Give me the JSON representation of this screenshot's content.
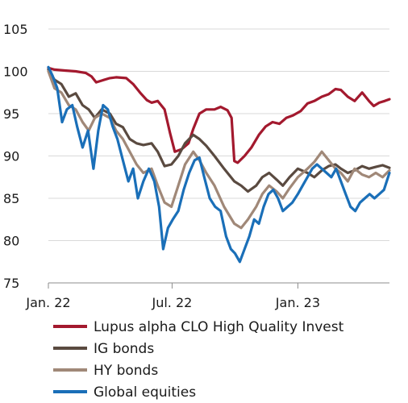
{
  "chart_data": {
    "type": "line",
    "title": "",
    "xlabel": "",
    "ylabel": "",
    "ylim": [
      75,
      105
    ],
    "yticks": [
      75,
      80,
      85,
      90,
      95,
      100,
      105
    ],
    "x_range": [
      "2022-01-01",
      "2023-05-15"
    ],
    "xticks": [
      {
        "date": "2022-01-01",
        "label": "Jan. 22"
      },
      {
        "date": "2022-07-01",
        "label": "Jul. 22"
      },
      {
        "date": "2023-01-01",
        "label": "Jan. 23"
      }
    ],
    "grid": {
      "horizontal": true,
      "vertical": false
    },
    "legend_position": "bottom",
    "series": [
      {
        "name": "Lupus alpha CLO High Quality Invest",
        "color": "#a3192e",
        "points": [
          [
            "2022-01-01",
            100.4
          ],
          [
            "2022-01-10",
            100.2
          ],
          [
            "2022-01-25",
            100.1
          ],
          [
            "2022-02-10",
            100.0
          ],
          [
            "2022-02-25",
            99.8
          ],
          [
            "2022-03-05",
            99.4
          ],
          [
            "2022-03-12",
            98.7
          ],
          [
            "2022-03-20",
            98.9
          ],
          [
            "2022-04-01",
            99.2
          ],
          [
            "2022-04-10",
            99.3
          ],
          [
            "2022-04-25",
            99.2
          ],
          [
            "2022-05-05",
            98.5
          ],
          [
            "2022-05-15",
            97.5
          ],
          [
            "2022-05-25",
            96.6
          ],
          [
            "2022-06-01",
            96.3
          ],
          [
            "2022-06-10",
            96.5
          ],
          [
            "2022-06-20",
            95.5
          ],
          [
            "2022-06-28",
            92.7
          ],
          [
            "2022-07-05",
            90.5
          ],
          [
            "2022-07-15",
            90.8
          ],
          [
            "2022-07-25",
            91.5
          ],
          [
            "2022-08-01",
            93.2
          ],
          [
            "2022-08-10",
            95.0
          ],
          [
            "2022-08-20",
            95.5
          ],
          [
            "2022-09-01",
            95.5
          ],
          [
            "2022-09-10",
            95.8
          ],
          [
            "2022-09-20",
            95.4
          ],
          [
            "2022-09-26",
            94.5
          ],
          [
            "2022-09-30",
            89.4
          ],
          [
            "2022-10-05",
            89.2
          ],
          [
            "2022-10-15",
            90.0
          ],
          [
            "2022-10-25",
            91.0
          ],
          [
            "2022-11-05",
            92.5
          ],
          [
            "2022-11-15",
            93.5
          ],
          [
            "2022-11-25",
            94.0
          ],
          [
            "2022-12-05",
            93.8
          ],
          [
            "2022-12-15",
            94.5
          ],
          [
            "2022-12-25",
            94.8
          ],
          [
            "2023-01-05",
            95.3
          ],
          [
            "2023-01-15",
            96.2
          ],
          [
            "2023-01-25",
            96.5
          ],
          [
            "2023-02-05",
            97.0
          ],
          [
            "2023-02-15",
            97.3
          ],
          [
            "2023-02-25",
            97.9
          ],
          [
            "2023-03-05",
            97.8
          ],
          [
            "2023-03-15",
            97.0
          ],
          [
            "2023-03-25",
            96.5
          ],
          [
            "2023-04-05",
            97.5
          ],
          [
            "2023-04-15",
            96.5
          ],
          [
            "2023-04-22",
            95.9
          ],
          [
            "2023-04-30",
            96.3
          ],
          [
            "2023-05-08",
            96.5
          ],
          [
            "2023-05-15",
            96.7
          ]
        ]
      },
      {
        "name": "IG bonds",
        "color": "#5a4a40",
        "points": [
          [
            "2022-01-01",
            100.2
          ],
          [
            "2022-01-10",
            99.0
          ],
          [
            "2022-01-20",
            98.5
          ],
          [
            "2022-01-31",
            97.0
          ],
          [
            "2022-02-10",
            97.4
          ],
          [
            "2022-02-20",
            96.0
          ],
          [
            "2022-03-01",
            95.5
          ],
          [
            "2022-03-10",
            94.5
          ],
          [
            "2022-03-20",
            95.5
          ],
          [
            "2022-04-01",
            95.0
          ],
          [
            "2022-04-10",
            93.8
          ],
          [
            "2022-04-20",
            93.4
          ],
          [
            "2022-04-30",
            92.0
          ],
          [
            "2022-05-10",
            91.5
          ],
          [
            "2022-05-20",
            91.3
          ],
          [
            "2022-06-01",
            91.5
          ],
          [
            "2022-06-10",
            90.5
          ],
          [
            "2022-06-20",
            88.8
          ],
          [
            "2022-06-30",
            89.0
          ],
          [
            "2022-07-10",
            90.0
          ],
          [
            "2022-07-20",
            91.5
          ],
          [
            "2022-08-01",
            92.5
          ],
          [
            "2022-08-10",
            92.0
          ],
          [
            "2022-08-20",
            91.2
          ],
          [
            "2022-09-01",
            90.0
          ],
          [
            "2022-09-15",
            88.5
          ],
          [
            "2022-09-30",
            87.0
          ],
          [
            "2022-10-10",
            86.5
          ],
          [
            "2022-10-20",
            85.8
          ],
          [
            "2022-11-01",
            86.5
          ],
          [
            "2022-11-10",
            87.5
          ],
          [
            "2022-11-20",
            88.0
          ],
          [
            "2022-12-01",
            87.2
          ],
          [
            "2022-12-10",
            86.5
          ],
          [
            "2022-12-20",
            87.5
          ],
          [
            "2023-01-01",
            88.5
          ],
          [
            "2023-01-15",
            88.0
          ],
          [
            "2023-01-25",
            87.5
          ],
          [
            "2023-02-05",
            88.3
          ],
          [
            "2023-02-15",
            88.8
          ],
          [
            "2023-02-25",
            89.0
          ],
          [
            "2023-03-05",
            88.5
          ],
          [
            "2023-03-15",
            88.0
          ],
          [
            "2023-03-25",
            88.3
          ],
          [
            "2023-04-05",
            88.8
          ],
          [
            "2023-04-15",
            88.5
          ],
          [
            "2023-04-25",
            88.7
          ],
          [
            "2023-05-05",
            88.9
          ],
          [
            "2023-05-15",
            88.6
          ]
        ]
      },
      {
        "name": "HY bonds",
        "color": "#a08878",
        "points": [
          [
            "2022-01-01",
            100.0
          ],
          [
            "2022-01-10",
            98.0
          ],
          [
            "2022-01-20",
            97.5
          ],
          [
            "2022-01-31",
            96.0
          ],
          [
            "2022-02-10",
            95.5
          ],
          [
            "2022-02-20",
            94.0
          ],
          [
            "2022-03-01",
            93.0
          ],
          [
            "2022-03-10",
            94.5
          ],
          [
            "2022-03-20",
            95.0
          ],
          [
            "2022-04-01",
            94.5
          ],
          [
            "2022-04-10",
            93.0
          ],
          [
            "2022-04-20",
            92.0
          ],
          [
            "2022-04-30",
            90.5
          ],
          [
            "2022-05-10",
            89.0
          ],
          [
            "2022-05-20",
            88.0
          ],
          [
            "2022-06-01",
            88.5
          ],
          [
            "2022-06-10",
            86.5
          ],
          [
            "2022-06-20",
            84.5
          ],
          [
            "2022-06-30",
            84.0
          ],
          [
            "2022-07-10",
            86.5
          ],
          [
            "2022-07-20",
            89.0
          ],
          [
            "2022-08-01",
            90.5
          ],
          [
            "2022-08-10",
            89.5
          ],
          [
            "2022-08-20",
            88.0
          ],
          [
            "2022-09-01",
            86.5
          ],
          [
            "2022-09-15",
            84.0
          ],
          [
            "2022-09-30",
            82.0
          ],
          [
            "2022-10-10",
            81.5
          ],
          [
            "2022-10-20",
            82.5
          ],
          [
            "2022-11-01",
            84.0
          ],
          [
            "2022-11-10",
            85.5
          ],
          [
            "2022-11-20",
            86.5
          ],
          [
            "2022-12-01",
            85.8
          ],
          [
            "2022-12-10",
            85.0
          ],
          [
            "2022-12-20",
            86.2
          ],
          [
            "2023-01-01",
            87.5
          ],
          [
            "2023-01-15",
            88.5
          ],
          [
            "2023-01-25",
            89.3
          ],
          [
            "2023-02-05",
            90.5
          ],
          [
            "2023-02-15",
            89.5
          ],
          [
            "2023-02-25",
            88.5
          ],
          [
            "2023-03-05",
            88.0
          ],
          [
            "2023-03-15",
            87.0
          ],
          [
            "2023-03-25",
            88.5
          ],
          [
            "2023-04-05",
            87.8
          ],
          [
            "2023-04-15",
            87.5
          ],
          [
            "2023-04-25",
            88.0
          ],
          [
            "2023-05-05",
            87.5
          ],
          [
            "2023-05-15",
            88.3
          ]
        ]
      },
      {
        "name": "Global equities",
        "color": "#1a6fb8",
        "points": [
          [
            "2022-01-01",
            100.5
          ],
          [
            "2022-01-07",
            99.5
          ],
          [
            "2022-01-14",
            98.0
          ],
          [
            "2022-01-21",
            94.0
          ],
          [
            "2022-01-28",
            95.5
          ],
          [
            "2022-02-05",
            96.0
          ],
          [
            "2022-02-12",
            93.5
          ],
          [
            "2022-02-20",
            91.0
          ],
          [
            "2022-02-28",
            93.0
          ],
          [
            "2022-03-08",
            88.5
          ],
          [
            "2022-03-15",
            93.0
          ],
          [
            "2022-03-22",
            96.0
          ],
          [
            "2022-03-29",
            95.5
          ],
          [
            "2022-04-05",
            93.5
          ],
          [
            "2022-04-12",
            92.0
          ],
          [
            "2022-04-20",
            89.5
          ],
          [
            "2022-04-28",
            87.0
          ],
          [
            "2022-05-05",
            88.5
          ],
          [
            "2022-05-12",
            85.0
          ],
          [
            "2022-05-20",
            87.0
          ],
          [
            "2022-05-28",
            88.5
          ],
          [
            "2022-06-05",
            87.0
          ],
          [
            "2022-06-12",
            84.0
          ],
          [
            "2022-06-18",
            79.0
          ],
          [
            "2022-06-25",
            81.5
          ],
          [
            "2022-07-02",
            82.5
          ],
          [
            "2022-07-10",
            83.5
          ],
          [
            "2022-07-18",
            86.0
          ],
          [
            "2022-07-26",
            88.0
          ],
          [
            "2022-08-03",
            89.5
          ],
          [
            "2022-08-10",
            89.8
          ],
          [
            "2022-08-17",
            87.5
          ],
          [
            "2022-08-25",
            85.0
          ],
          [
            "2022-09-02",
            84.0
          ],
          [
            "2022-09-10",
            83.5
          ],
          [
            "2022-09-18",
            80.5
          ],
          [
            "2022-09-25",
            79.0
          ],
          [
            "2022-10-01",
            78.5
          ],
          [
            "2022-10-08",
            77.5
          ],
          [
            "2022-10-15",
            79.0
          ],
          [
            "2022-10-22",
            80.5
          ],
          [
            "2022-10-29",
            82.5
          ],
          [
            "2022-11-05",
            82.0
          ],
          [
            "2022-11-12",
            84.0
          ],
          [
            "2022-11-19",
            85.5
          ],
          [
            "2022-11-26",
            86.0
          ],
          [
            "2022-12-03",
            85.0
          ],
          [
            "2022-12-10",
            83.5
          ],
          [
            "2022-12-17",
            84.0
          ],
          [
            "2022-12-24",
            84.5
          ],
          [
            "2023-01-01",
            85.5
          ],
          [
            "2023-01-08",
            86.5
          ],
          [
            "2023-01-15",
            87.5
          ],
          [
            "2023-01-22",
            88.5
          ],
          [
            "2023-01-29",
            89.0
          ],
          [
            "2023-02-05",
            88.5
          ],
          [
            "2023-02-12",
            88.0
          ],
          [
            "2023-02-19",
            87.5
          ],
          [
            "2023-02-26",
            88.5
          ],
          [
            "2023-03-05",
            87.0
          ],
          [
            "2023-03-12",
            85.5
          ],
          [
            "2023-03-19",
            84.0
          ],
          [
            "2023-03-26",
            83.5
          ],
          [
            "2023-04-02",
            84.5
          ],
          [
            "2023-04-09",
            85.0
          ],
          [
            "2023-04-16",
            85.5
          ],
          [
            "2023-04-23",
            85.0
          ],
          [
            "2023-04-30",
            85.5
          ],
          [
            "2023-05-07",
            86.0
          ],
          [
            "2023-05-15",
            88.0
          ]
        ]
      }
    ]
  }
}
